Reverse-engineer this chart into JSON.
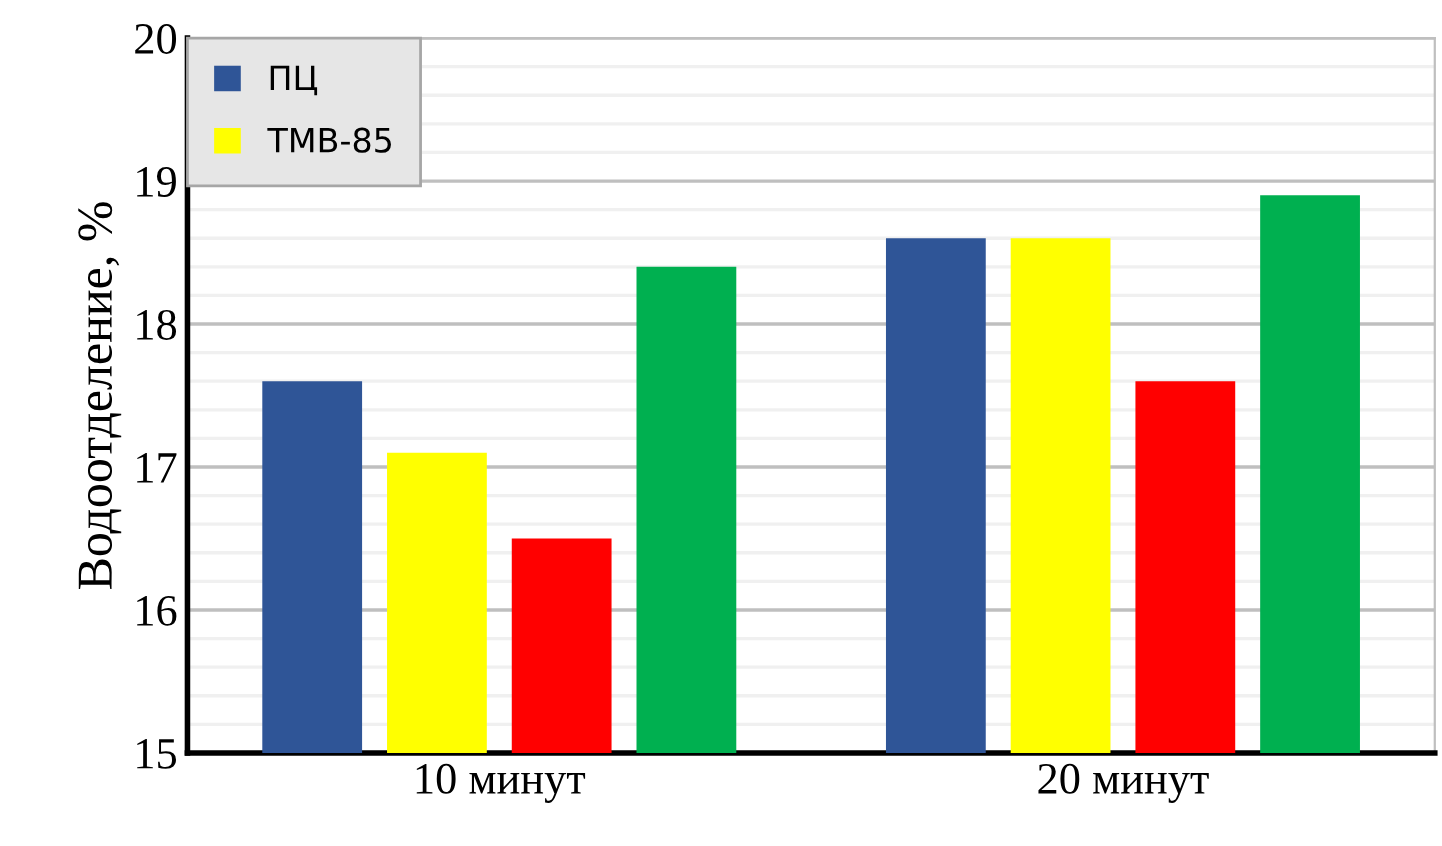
{
  "chart_data": {
    "type": "bar",
    "ylabel": "Водоотделение, %",
    "categories": [
      "10 минут",
      "20 минут"
    ],
    "series": [
      {
        "name": "ПЦ",
        "color": "#2f5597",
        "values": [
          17.6,
          18.6
        ]
      },
      {
        "name": "ТМВ-85",
        "color": "#ffff00",
        "values": [
          17.1,
          18.6
        ]
      },
      {
        "color": "#ff0000",
        "values": [
          16.5,
          17.6
        ]
      },
      {
        "color": "#00b050",
        "values": [
          18.4,
          18.9
        ]
      }
    ],
    "ylim": [
      15,
      20
    ],
    "yticks": [
      15,
      16,
      17,
      18,
      19,
      20
    ],
    "grid": "y",
    "legend": "top left"
  }
}
